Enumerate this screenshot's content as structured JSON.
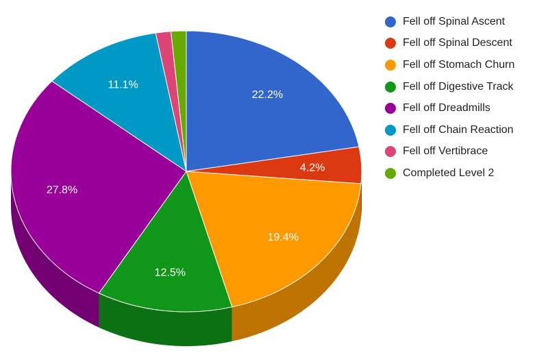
{
  "chart_data": {
    "type": "pie",
    "style": "3d",
    "legend_position": "right",
    "categories": [
      "Fell off Spinal Ascent",
      "Fell off Spinal Descent",
      "Fell off Stomach Churn",
      "Fell off Digestive Track",
      "Fell off Dreadmills",
      "Fell off Chain Reaction",
      "Fell off Vertibrace",
      "Completed Level 2"
    ],
    "values": [
      22.2,
      4.2,
      19.4,
      12.5,
      27.8,
      11.1,
      1.4,
      1.4
    ],
    "labels": [
      "22.2%",
      "4.2%",
      "19.4%",
      "12.5%",
      "27.8%",
      "11.1%",
      "",
      ""
    ],
    "colors": [
      "#3366cc",
      "#dc3912",
      "#ff9900",
      "#109618",
      "#990099",
      "#0099c6",
      "#dd4477",
      "#66aa00"
    ],
    "side_colors": [
      "#264c99",
      "#a52b0e",
      "#bf7300",
      "#0c7112",
      "#730073",
      "#007394",
      "#a63359",
      "#4d8000"
    ]
  }
}
